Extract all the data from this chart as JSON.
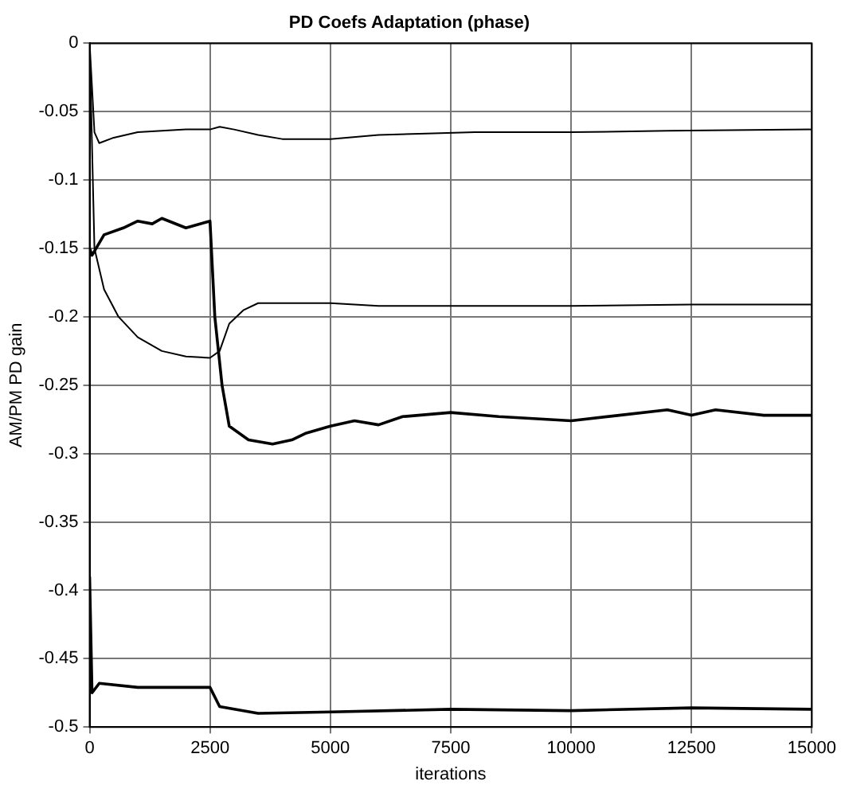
{
  "chart_data": {
    "type": "line",
    "title": "PD Coefs Adaptation (phase)",
    "xlabel": "iterations",
    "ylabel": "AM/PM PD gain",
    "xlim": [
      0,
      15000
    ],
    "xticks": [
      0,
      2500,
      5000,
      7500,
      10000,
      12500,
      15000
    ],
    "ylim": [
      -0.5,
      0
    ],
    "yticks": [
      -0.5,
      -0.45,
      -0.4,
      -0.35,
      -0.3,
      -0.25,
      -0.2,
      -0.15,
      -0.1,
      -0.05,
      0
    ],
    "grid": true,
    "legend": false,
    "marker": "none",
    "line_style": "solid",
    "series": [
      {
        "color": "#000000",
        "x": [
          0,
          100,
          200,
          500,
          1000,
          1500,
          2000,
          2500,
          2700,
          3000,
          3500,
          4000,
          5000,
          6000,
          7000,
          8000,
          10000,
          12000,
          15000
        ],
        "values": [
          0,
          -0.065,
          -0.073,
          -0.069,
          -0.065,
          -0.064,
          -0.063,
          -0.063,
          -0.061,
          -0.063,
          -0.067,
          -0.07,
          -0.07,
          -0.067,
          -0.066,
          -0.065,
          -0.065,
          -0.064,
          -0.063
        ]
      },
      {
        "color": "#000000",
        "x": [
          0,
          100,
          300,
          600,
          1000,
          1500,
          2000,
          2500,
          2700,
          2900,
          3200,
          3500,
          5000,
          6000,
          10000,
          12500,
          15000
        ],
        "values": [
          0,
          -0.15,
          -0.18,
          -0.2,
          -0.215,
          -0.225,
          -0.229,
          -0.23,
          -0.225,
          -0.205,
          -0.195,
          -0.19,
          -0.19,
          -0.192,
          -0.192,
          -0.191,
          -0.191
        ]
      },
      {
        "color": "#000000",
        "x": [
          0,
          50,
          300,
          700,
          1000,
          1300,
          1500,
          2000,
          2500,
          2600,
          2750,
          2900,
          3300,
          3800,
          4200,
          4500,
          5000,
          5500,
          6000,
          6500,
          7500,
          8500,
          10000,
          11000,
          12000,
          12500,
          13000,
          14000,
          15000
        ],
        "values": [
          -0.15,
          -0.155,
          -0.14,
          -0.135,
          -0.13,
          -0.132,
          -0.128,
          -0.135,
          -0.13,
          -0.2,
          -0.25,
          -0.28,
          -0.29,
          -0.293,
          -0.29,
          -0.285,
          -0.28,
          -0.276,
          -0.279,
          -0.273,
          -0.27,
          -0.273,
          -0.276,
          -0.272,
          -0.268,
          -0.272,
          -0.268,
          -0.272,
          -0.272
        ]
      },
      {
        "color": "#000000",
        "x": [
          0,
          50,
          200,
          1000,
          2500,
          2700,
          3500,
          5000,
          7500,
          10000,
          12500,
          15000
        ],
        "values": [
          -0.39,
          -0.475,
          -0.468,
          -0.471,
          -0.471,
          -0.485,
          -0.49,
          -0.489,
          -0.487,
          -0.488,
          -0.486,
          -0.487
        ]
      }
    ]
  }
}
